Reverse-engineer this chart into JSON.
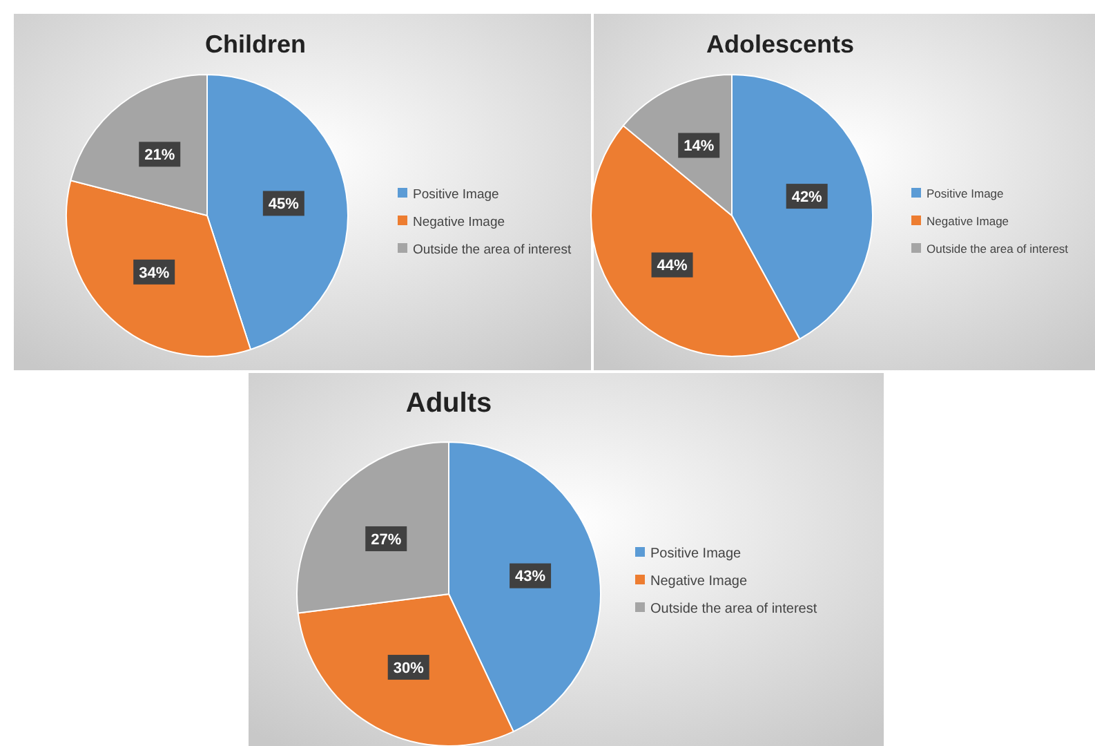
{
  "chart_data": [
    {
      "type": "pie",
      "title": "Children",
      "categories": [
        "Positive Image",
        "Negative Image",
        "Outside the area of interest"
      ],
      "values": [
        45,
        34,
        21
      ],
      "value_labels": [
        "45%",
        "34%",
        "21%"
      ],
      "colors": [
        "#5b9bd5",
        "#ed7d31",
        "#a5a5a5"
      ],
      "legend": "right"
    },
    {
      "type": "pie",
      "title": "Adolescents",
      "categories": [
        "Positive Image",
        "Negative Image",
        "Outside the area of interest"
      ],
      "values": [
        42,
        44,
        14
      ],
      "value_labels": [
        "42%",
        "44%",
        "14%"
      ],
      "colors": [
        "#5b9bd5",
        "#ed7d31",
        "#a5a5a5"
      ],
      "legend": "right"
    },
    {
      "type": "pie",
      "title": "Adults",
      "categories": [
        "Positive Image",
        "Negative Image",
        "Outside the area of interest"
      ],
      "values": [
        43,
        30,
        27
      ],
      "value_labels": [
        "43%",
        "30%",
        "27%"
      ],
      "colors": [
        "#5b9bd5",
        "#ed7d31",
        "#a5a5a5"
      ],
      "legend": "right"
    }
  ]
}
